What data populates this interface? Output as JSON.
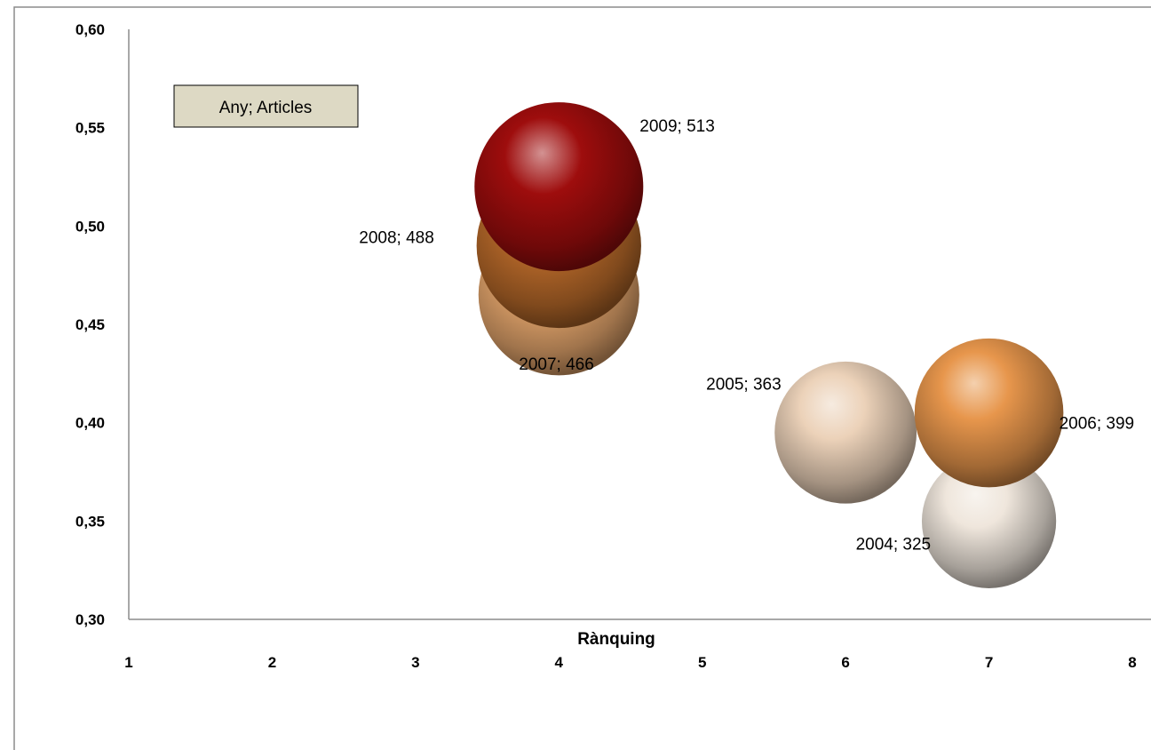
{
  "chart_data": {
    "type": "bubble",
    "xlabel": "Rànquing",
    "ylabel": "",
    "xlim": [
      1,
      8
    ],
    "ylim": [
      0.3,
      0.6
    ],
    "x_ticks": [
      "1",
      "2",
      "3",
      "4",
      "5",
      "6",
      "7",
      "8"
    ],
    "y_ticks": [
      "0,30",
      "0,35",
      "0,40",
      "0,45",
      "0,50",
      "0,55",
      "0,60"
    ],
    "grid": false,
    "legend_box_text": "Any; Articles",
    "points": [
      {
        "year": "2004",
        "articles": 325,
        "x": 7,
        "y": 0.35,
        "label": "2004; 325",
        "color": "#efe6dc"
      },
      {
        "year": "2005",
        "articles": 363,
        "x": 6,
        "y": 0.395,
        "label": "2005; 363",
        "color": "#ecd2b9"
      },
      {
        "year": "2006",
        "articles": 399,
        "x": 7,
        "y": 0.405,
        "label": "2006; 399",
        "color": "#e7964c"
      },
      {
        "year": "2007",
        "articles": 466,
        "x": 4,
        "y": 0.465,
        "label": "2007; 466",
        "color": "#e5a66c"
      },
      {
        "year": "2008",
        "articles": 488,
        "x": 4,
        "y": 0.49,
        "label": "2008; 488",
        "color": "#b8692a"
      },
      {
        "year": "2009",
        "articles": 513,
        "x": 4,
        "y": 0.52,
        "label": "2009; 513",
        "color": "#9e0d0d"
      }
    ]
  }
}
